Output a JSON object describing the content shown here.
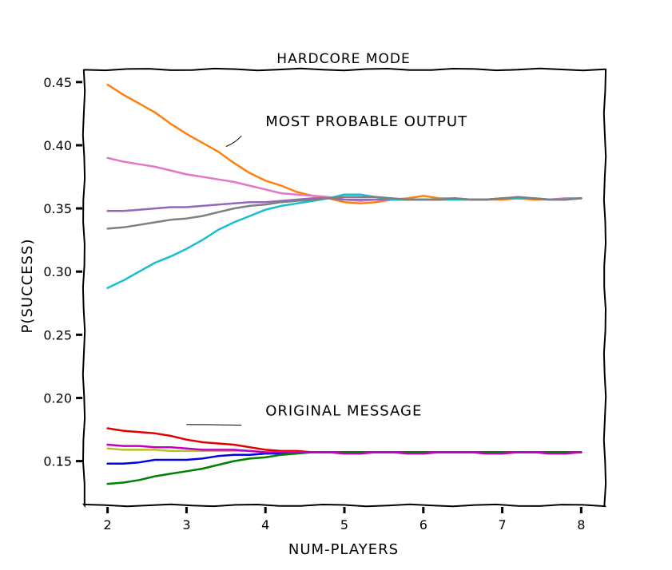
{
  "chart_data": {
    "type": "line",
    "title": "HARDCORE MODE",
    "xlabel": "NUM-PLAYERS",
    "ylabel": "P(SUCCESS)",
    "xlim": [
      1.7,
      8.3
    ],
    "ylim": [
      0.115,
      0.46
    ],
    "xticks": [
      2,
      3,
      4,
      5,
      6,
      7,
      8
    ],
    "yticks": [
      0.15,
      0.2,
      0.25,
      0.3,
      0.35,
      0.4,
      0.45
    ],
    "ytick_labels": [
      "0.15",
      "0.20",
      "0.25",
      "0.30",
      "0.35",
      "0.40",
      "0.45"
    ],
    "grid": false,
    "annotations": [
      {
        "text": "MOST PROBABLE OUTPUT",
        "point": [
          3.5,
          0.399
        ],
        "text_at": [
          4.0,
          0.415
        ]
      },
      {
        "text": "ORIGINAL MESSAGE",
        "point": [
          3.0,
          0.179
        ],
        "text_at": [
          4.0,
          0.186
        ]
      }
    ],
    "series": [
      {
        "color": "#ff7f0e",
        "x": [
          2,
          2.2,
          2.4,
          2.6,
          2.8,
          3.0,
          3.2,
          3.4,
          3.6,
          3.8,
          4.0,
          4.2,
          4.4,
          4.6,
          4.8,
          5.0,
          5.2,
          5.4,
          5.6,
          5.8,
          6.0,
          6.2,
          6.4,
          6.6,
          6.8,
          7.0,
          7.2,
          7.4,
          7.6,
          7.8,
          8.0
        ],
        "y": [
          0.448,
          0.44,
          0.433,
          0.426,
          0.417,
          0.409,
          0.402,
          0.395,
          0.386,
          0.378,
          0.372,
          0.368,
          0.363,
          0.36,
          0.358,
          0.355,
          0.354,
          0.355,
          0.357,
          0.358,
          0.36,
          0.358,
          0.358,
          0.357,
          0.357,
          0.357,
          0.358,
          0.357,
          0.357,
          0.358,
          0.358
        ]
      },
      {
        "color": "#e377c2",
        "x": [
          2,
          2.2,
          2.4,
          2.6,
          2.8,
          3.0,
          3.2,
          3.4,
          3.6,
          3.8,
          4.0,
          4.2,
          4.4,
          4.6,
          4.8,
          5.0,
          5.2,
          5.4,
          5.6,
          5.8,
          6.0,
          6.2,
          6.4,
          6.6,
          6.8,
          7.0,
          7.2,
          7.4,
          7.6,
          7.8,
          8.0
        ],
        "y": [
          0.39,
          0.387,
          0.385,
          0.383,
          0.38,
          0.377,
          0.375,
          0.373,
          0.371,
          0.368,
          0.365,
          0.362,
          0.361,
          0.36,
          0.359,
          0.357,
          0.356,
          0.357,
          0.357,
          0.357,
          0.357,
          0.357,
          0.358,
          0.357,
          0.357,
          0.358,
          0.358,
          0.358,
          0.357,
          0.358,
          0.358
        ]
      },
      {
        "color": "#9467bd",
        "x": [
          2,
          2.2,
          2.4,
          2.6,
          2.8,
          3.0,
          3.2,
          3.4,
          3.6,
          3.8,
          4.0,
          4.2,
          4.4,
          4.6,
          4.8,
          5.0,
          5.2,
          5.4,
          5.6,
          5.8,
          6.0,
          6.2,
          6.4,
          6.6,
          6.8,
          7.0,
          7.2,
          7.4,
          7.6,
          7.8,
          8.0
        ],
        "y": [
          0.348,
          0.348,
          0.349,
          0.35,
          0.351,
          0.351,
          0.352,
          0.353,
          0.354,
          0.355,
          0.355,
          0.356,
          0.357,
          0.358,
          0.358,
          0.357,
          0.357,
          0.357,
          0.357,
          0.357,
          0.357,
          0.357,
          0.357,
          0.357,
          0.357,
          0.358,
          0.358,
          0.358,
          0.357,
          0.357,
          0.358
        ]
      },
      {
        "color": "#17becf",
        "x": [
          2,
          2.2,
          2.4,
          2.6,
          2.8,
          3.0,
          3.2,
          3.4,
          3.6,
          3.8,
          4.0,
          4.2,
          4.4,
          4.6,
          4.8,
          5.0,
          5.2,
          5.4,
          5.6,
          5.8,
          6.0,
          6.2,
          6.4,
          6.6,
          6.8,
          7.0,
          7.2,
          7.4,
          7.6,
          7.8,
          8.0
        ],
        "y": [
          0.287,
          0.293,
          0.3,
          0.307,
          0.312,
          0.318,
          0.325,
          0.333,
          0.339,
          0.344,
          0.349,
          0.352,
          0.354,
          0.356,
          0.358,
          0.361,
          0.361,
          0.359,
          0.357,
          0.357,
          0.357,
          0.357,
          0.357,
          0.357,
          0.357,
          0.358,
          0.358,
          0.358,
          0.357,
          0.357,
          0.358
        ]
      },
      {
        "color": "#7f7f7f",
        "x": [
          2,
          2.2,
          2.4,
          2.6,
          2.8,
          3.0,
          3.2,
          3.4,
          3.6,
          3.8,
          4.0,
          4.2,
          4.4,
          4.6,
          4.8,
          5.0,
          5.2,
          5.4,
          5.6,
          5.8,
          6.0,
          6.2,
          6.4,
          6.6,
          6.8,
          7.0,
          7.2,
          7.4,
          7.6,
          7.8,
          8.0
        ],
        "y": [
          0.334,
          0.335,
          0.337,
          0.339,
          0.341,
          0.342,
          0.344,
          0.347,
          0.35,
          0.352,
          0.353,
          0.355,
          0.356,
          0.357,
          0.358,
          0.359,
          0.359,
          0.359,
          0.358,
          0.357,
          0.357,
          0.357,
          0.358,
          0.357,
          0.357,
          0.358,
          0.359,
          0.358,
          0.357,
          0.357,
          0.358
        ]
      },
      {
        "color": "#e00000",
        "x": [
          2,
          2.2,
          2.4,
          2.6,
          2.8,
          3.0,
          3.2,
          3.4,
          3.6,
          3.8,
          4.0,
          4.2,
          4.4,
          4.6,
          4.8,
          5.0,
          5.2,
          5.4,
          5.6,
          5.8,
          6.0,
          6.2,
          6.4,
          6.6,
          6.8,
          7.0,
          7.2,
          7.4,
          7.6,
          7.8,
          8.0
        ],
        "y": [
          0.176,
          0.174,
          0.173,
          0.172,
          0.17,
          0.167,
          0.165,
          0.164,
          0.163,
          0.161,
          0.159,
          0.158,
          0.158,
          0.157,
          0.157,
          0.157,
          0.157,
          0.157,
          0.157,
          0.157,
          0.157,
          0.157,
          0.157,
          0.157,
          0.157,
          0.157,
          0.157,
          0.157,
          0.157,
          0.157,
          0.157
        ]
      },
      {
        "color": "#bcbd22",
        "x": [
          2,
          2.2,
          2.4,
          2.6,
          2.8,
          3.0,
          3.2,
          3.4,
          3.6,
          3.8,
          4.0,
          4.2,
          4.4,
          4.6,
          4.8,
          5.0,
          5.2,
          5.4,
          5.6,
          5.8,
          6.0,
          6.2,
          6.4,
          6.6,
          6.8,
          7.0,
          7.2,
          7.4,
          7.6,
          7.8,
          8.0
        ],
        "y": [
          0.16,
          0.159,
          0.159,
          0.159,
          0.158,
          0.158,
          0.158,
          0.158,
          0.158,
          0.158,
          0.157,
          0.157,
          0.157,
          0.157,
          0.157,
          0.157,
          0.157,
          0.157,
          0.157,
          0.157,
          0.157,
          0.157,
          0.157,
          0.157,
          0.157,
          0.157,
          0.157,
          0.157,
          0.157,
          0.157,
          0.157
        ]
      },
      {
        "color": "#0000e0",
        "x": [
          2,
          2.2,
          2.4,
          2.6,
          2.8,
          3.0,
          3.2,
          3.4,
          3.6,
          3.8,
          4.0,
          4.2,
          4.4,
          4.6,
          4.8,
          5.0,
          5.2,
          5.4,
          5.6,
          5.8,
          6.0,
          6.2,
          6.4,
          6.6,
          6.8,
          7.0,
          7.2,
          7.4,
          7.6,
          7.8,
          8.0
        ],
        "y": [
          0.148,
          0.148,
          0.149,
          0.151,
          0.151,
          0.151,
          0.152,
          0.154,
          0.155,
          0.155,
          0.156,
          0.156,
          0.157,
          0.157,
          0.157,
          0.157,
          0.157,
          0.157,
          0.157,
          0.157,
          0.157,
          0.157,
          0.157,
          0.157,
          0.157,
          0.157,
          0.157,
          0.157,
          0.157,
          0.157,
          0.157
        ]
      },
      {
        "color": "#008000",
        "x": [
          2,
          2.2,
          2.4,
          2.6,
          2.8,
          3.0,
          3.2,
          3.4,
          3.6,
          3.8,
          4.0,
          4.2,
          4.4,
          4.6,
          4.8,
          5.0,
          5.2,
          5.4,
          5.6,
          5.8,
          6.0,
          6.2,
          6.4,
          6.6,
          6.8,
          7.0,
          7.2,
          7.4,
          7.6,
          7.8,
          8.0
        ],
        "y": [
          0.132,
          0.133,
          0.135,
          0.138,
          0.14,
          0.142,
          0.144,
          0.147,
          0.15,
          0.152,
          0.153,
          0.155,
          0.156,
          0.157,
          0.157,
          0.157,
          0.157,
          0.157,
          0.157,
          0.157,
          0.157,
          0.157,
          0.157,
          0.157,
          0.157,
          0.157,
          0.157,
          0.157,
          0.157,
          0.157,
          0.157
        ]
      },
      {
        "color": "#c000c0",
        "x": [
          2,
          2.2,
          2.4,
          2.6,
          2.8,
          3.0,
          3.2,
          3.4,
          3.6,
          3.8,
          4.0,
          4.2,
          4.4,
          4.6,
          4.8,
          5.0,
          5.2,
          5.4,
          5.6,
          5.8,
          6.0,
          6.2,
          6.4,
          6.6,
          6.8,
          7.0,
          7.2,
          7.4,
          7.6,
          7.8,
          8.0
        ],
        "y": [
          0.163,
          0.162,
          0.162,
          0.161,
          0.161,
          0.16,
          0.159,
          0.159,
          0.159,
          0.158,
          0.157,
          0.157,
          0.157,
          0.157,
          0.157,
          0.156,
          0.156,
          0.157,
          0.157,
          0.156,
          0.156,
          0.157,
          0.157,
          0.157,
          0.156,
          0.156,
          0.157,
          0.157,
          0.156,
          0.156,
          0.157
        ]
      }
    ]
  }
}
